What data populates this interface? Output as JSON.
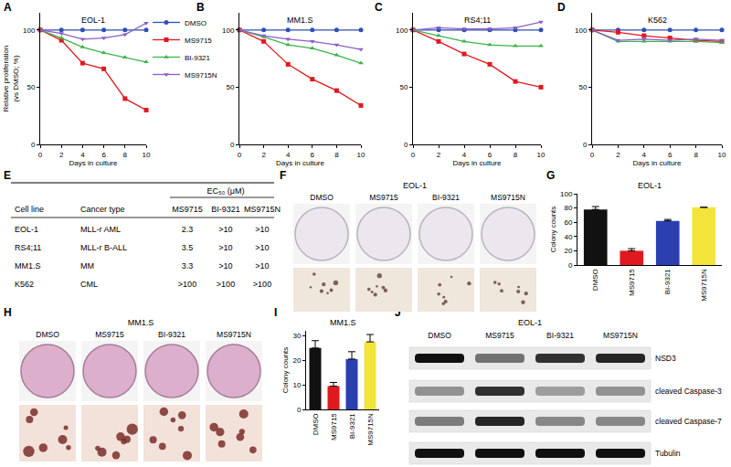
{
  "chart_data": [
    {
      "panel": "A",
      "type": "line",
      "title": "EOL-1",
      "x": [
        0,
        2,
        4,
        6,
        8,
        10
      ],
      "xlabel": "Days in culture",
      "ylabel": "Relative proliferation\n(vs DMSO; %)",
      "xlim": [
        0,
        10
      ],
      "xticks": [
        0,
        2,
        4,
        6,
        8,
        10
      ],
      "ylim": [
        0,
        115
      ],
      "yticks": [
        0,
        50,
        100
      ],
      "grid": false,
      "legend": "top right",
      "series": [
        {
          "name": "DMSO",
          "color": "#2f4fb5",
          "marker": "circle",
          "values": [
            100,
            100,
            100,
            100,
            100,
            100
          ]
        },
        {
          "name": "MS9715",
          "color": "#e0191e",
          "marker": "square",
          "values": [
            100,
            91,
            71,
            66,
            40,
            30
          ]
        },
        {
          "name": "BI-9321",
          "color": "#3db34a",
          "marker": "triangle-up",
          "values": [
            100,
            93,
            85,
            80,
            76,
            72
          ]
        },
        {
          "name": "MS9715N",
          "color": "#8b5fc7",
          "marker": "triangle-down",
          "values": [
            100,
            97,
            92,
            93,
            96,
            106
          ]
        }
      ]
    },
    {
      "panel": "B",
      "type": "line",
      "title": "MM1.S",
      "x": [
        0,
        2,
        4,
        6,
        8,
        10
      ],
      "xlabel": "Days in culture",
      "xlim": [
        0,
        10
      ],
      "xticks": [
        0,
        2,
        4,
        6,
        8,
        10
      ],
      "ylim": [
        0,
        115
      ],
      "yticks": [
        0,
        50,
        100
      ],
      "grid": false,
      "series": [
        {
          "name": "DMSO",
          "color": "#2f4fb5",
          "marker": "circle",
          "values": [
            100,
            100,
            100,
            100,
            100,
            100
          ]
        },
        {
          "name": "MS9715",
          "color": "#e0191e",
          "marker": "square",
          "values": [
            100,
            90,
            70,
            57,
            47,
            34
          ]
        },
        {
          "name": "BI-9321",
          "color": "#3db34a",
          "marker": "triangle-up",
          "values": [
            100,
            94,
            87,
            84,
            78,
            71
          ]
        },
        {
          "name": "MS9715N",
          "color": "#8b5fc7",
          "marker": "triangle-down",
          "values": [
            100,
            95,
            92,
            90,
            87,
            83
          ]
        }
      ]
    },
    {
      "panel": "C",
      "type": "line",
      "title": "RS4;11",
      "x": [
        0,
        2,
        4,
        6,
        8,
        10
      ],
      "xlabel": "Days in culture",
      "xlim": [
        0,
        10
      ],
      "xticks": [
        0,
        2,
        4,
        6,
        8,
        10
      ],
      "ylim": [
        0,
        115
      ],
      "yticks": [
        0,
        50,
        100
      ],
      "grid": false,
      "series": [
        {
          "name": "DMSO",
          "color": "#2f4fb5",
          "marker": "circle",
          "values": [
            100,
            100,
            100,
            100,
            100,
            100
          ]
        },
        {
          "name": "MS9715",
          "color": "#e0191e",
          "marker": "square",
          "values": [
            100,
            90,
            79,
            70,
            55,
            50
          ]
        },
        {
          "name": "BI-9321",
          "color": "#3db34a",
          "marker": "triangle-up",
          "values": [
            100,
            95,
            90,
            87,
            86,
            86
          ]
        },
        {
          "name": "MS9715N",
          "color": "#8b5fc7",
          "marker": "triangle-down",
          "values": [
            100,
            102,
            101,
            101,
            102,
            107
          ]
        }
      ]
    },
    {
      "panel": "D",
      "type": "line",
      "title": "K562",
      "x": [
        0,
        2,
        4,
        6,
        8,
        10
      ],
      "xlabel": "Days in culture",
      "xlim": [
        0,
        10
      ],
      "xticks": [
        0,
        2,
        4,
        6,
        8,
        10
      ],
      "ylim": [
        0,
        115
      ],
      "yticks": [
        0,
        50,
        100
      ],
      "grid": false,
      "series": [
        {
          "name": "DMSO",
          "color": "#2f4fb5",
          "marker": "circle",
          "values": [
            100,
            100,
            100,
            100,
            100,
            100
          ]
        },
        {
          "name": "MS9715",
          "color": "#e0191e",
          "marker": "square",
          "values": [
            100,
            98,
            95,
            93,
            91,
            90
          ]
        },
        {
          "name": "BI-9321",
          "color": "#3db34a",
          "marker": "triangle-up",
          "values": [
            100,
            90,
            90,
            90,
            90,
            89
          ]
        },
        {
          "name": "MS9715N",
          "color": "#8b5fc7",
          "marker": "triangle-down",
          "values": [
            100,
            91,
            92,
            91,
            92,
            91
          ]
        }
      ]
    },
    {
      "panel": "G",
      "type": "bar",
      "title": "EOL-1",
      "ylabel": "Colony counts",
      "categories": [
        "DMSO",
        "MS9715",
        "BI-9321",
        "MS9715N"
      ],
      "values": [
        78,
        20,
        62,
        81
      ],
      "errors": [
        4,
        3,
        2,
        0
      ],
      "colors": [
        "#111111",
        "#e0191e",
        "#2b3fb0",
        "#f3e43c"
      ],
      "ylim": [
        0,
        100
      ],
      "yticks": [
        0,
        20,
        40,
        60,
        80,
        100
      ],
      "grid": false
    },
    {
      "panel": "I",
      "type": "bar",
      "title": "MM1.S",
      "ylabel": "Colony counts",
      "categories": [
        "DMSO",
        "MS9715",
        "BI-9321",
        "MS9715N"
      ],
      "values": [
        25,
        9.5,
        20.5,
        27.5
      ],
      "errors": [
        3,
        1.5,
        3,
        3
      ],
      "colors": [
        "#111111",
        "#e0191e",
        "#2b3fb0",
        "#f3e43c"
      ],
      "ylim": [
        0,
        32
      ],
      "yticks": [
        0,
        10,
        20,
        30
      ],
      "grid": false
    }
  ],
  "table": {
    "panel": "E",
    "header": [
      "Cell line",
      "Cancer type",
      "EC₅₀ (μM)"
    ],
    "subheader": [
      "MS9715",
      "BI-9321",
      "MS9715N"
    ],
    "rows": [
      [
        "EOL-1",
        "MLL-r AML",
        "2.3",
        ">10",
        ">10"
      ],
      [
        "RS4;11",
        "MLL-r B-ALL",
        "3.5",
        ">10",
        ">10"
      ],
      [
        "MM1.S",
        "MM",
        "3.3",
        ">10",
        ">10"
      ],
      [
        "K562",
        "CML",
        ">100",
        ">100",
        ">100"
      ]
    ]
  },
  "colony_images": [
    {
      "panel": "F",
      "title": "EOL-1",
      "labels": [
        "DMSO",
        "MS9715",
        "BI-9321",
        "MS9715N"
      ]
    },
    {
      "panel": "H",
      "title": "MM1.S",
      "labels": [
        "DMSO",
        "MS9715",
        "BI-9321",
        "MS9715N"
      ]
    }
  ],
  "blot": {
    "panel": "J",
    "title": "EOL-1",
    "lanes": [
      "DMSO",
      "MS9715",
      "BI-9321",
      "MS9715N"
    ],
    "rows": [
      {
        "label": "NSD3",
        "intensity": [
          1,
          0.55,
          0.85,
          0.9
        ]
      },
      {
        "label": "cleaved Caspase-3",
        "intensity": [
          0.4,
          0.85,
          0.35,
          0.4
        ]
      },
      {
        "label": "cleaved Caspase-7",
        "intensity": [
          0.5,
          0.9,
          0.45,
          0.45
        ]
      },
      {
        "label": "Tubulin",
        "intensity": [
          1,
          1,
          1,
          1
        ]
      }
    ]
  }
}
